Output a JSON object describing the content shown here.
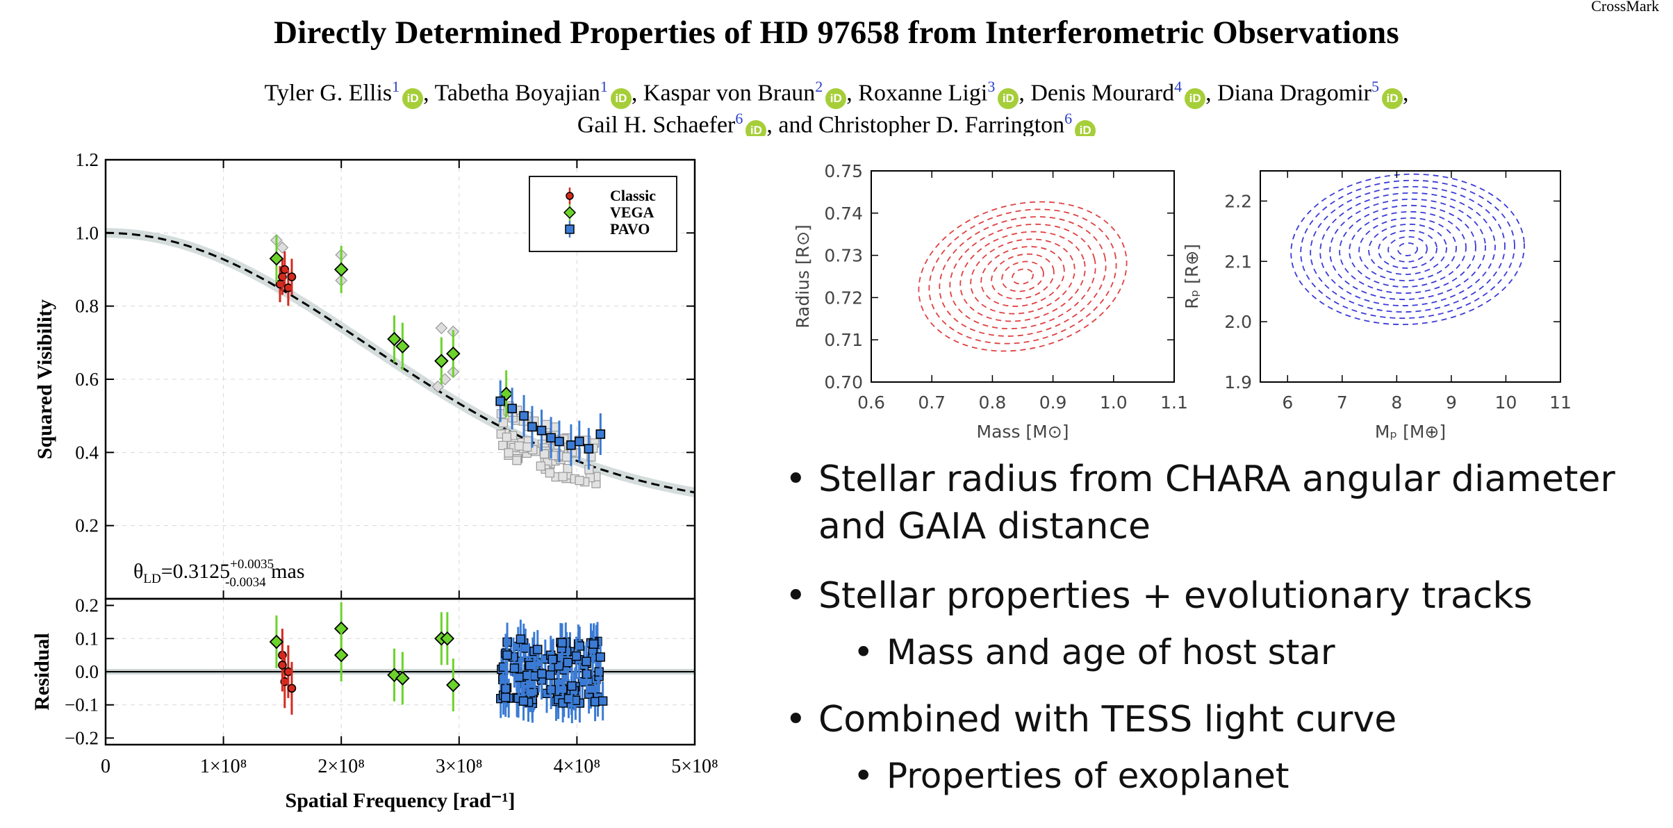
{
  "header": {
    "crossmark": "CrossMark",
    "title": "Directly Determined Properties of HD 97658 from Interferometric Observations",
    "authors_line1": [
      {
        "name": "Tyler G. Ellis",
        "aff": "1",
        "sep": ", "
      },
      {
        "name": "Tabetha Boyajian",
        "aff": "1",
        "sep": ", "
      },
      {
        "name": "Kaspar von Braun",
        "aff": "2",
        "sep": ", "
      },
      {
        "name": "Roxanne Ligi",
        "aff": "3",
        "sep": ", "
      },
      {
        "name": "Denis Mourard",
        "aff": "4",
        "sep": ", "
      },
      {
        "name": "Diana Dragomir",
        "aff": "5",
        "sep": ","
      }
    ],
    "authors_line2": [
      {
        "name": "Gail H. Schaefer",
        "aff": "6",
        "sep": ", and "
      },
      {
        "name": "Christopher D. Farrington",
        "aff": "6",
        "sep": ""
      }
    ],
    "orcid_label": "iD"
  },
  "bullets": {
    "b1_line1": "Stellar radius from CHARA angular diameter",
    "b1_line2": "and GAIA distance",
    "b2": "Stellar properties + evolutionary tracks",
    "b2_sub": "Mass and age of host star",
    "b3": "Combined with TESS light curve",
    "b3_sub": "Properties of exoplanet",
    "bullet_glyph": "•"
  },
  "chart_data": [
    {
      "type": "scatter",
      "title": "",
      "xlabel": "Spatial Frequency [rad⁻¹]",
      "ylabel": "Squared Visibility",
      "xlim": [
        0,
        500000000
      ],
      "ylim": [
        0,
        1.2
      ],
      "xticks": [
        "0",
        "1×10⁸",
        "2×10⁸",
        "3×10⁸",
        "4×10⁸",
        "5×10⁸"
      ],
      "yticks": [
        "0.2",
        "0.4",
        "0.6",
        "0.8",
        "1.0",
        "1.2"
      ],
      "legend": [
        "Classic",
        "VEGA",
        "PAVO"
      ],
      "legend_position": "top-right",
      "annotation": {
        "prefix": "θ",
        "sub": "LD",
        "value": "=0.3125",
        "plus": "+0.0035",
        "minus": "-0.0034",
        "unit": "mas"
      },
      "model": "uniform limb-darkened disk fit, V² = 1.0 at x=0 falling to 0.24 at 5×10⁸",
      "series": [
        {
          "name": "Classic",
          "color": "#d42a1e",
          "marker": "circle",
          "x": [
            148000000.0,
            150000000.0,
            152000000.0,
            155000000.0,
            158000000.0
          ],
          "y": [
            0.86,
            0.88,
            0.9,
            0.85,
            0.88
          ]
        },
        {
          "name": "VEGA",
          "color": "#6bd32a",
          "marker": "diamond",
          "x": [
            145000000.0,
            200000000.0,
            245000000.0,
            252000000.0,
            285000000.0,
            295000000.0,
            340000000.0
          ],
          "y": [
            0.93,
            0.9,
            0.71,
            0.69,
            0.65,
            0.67,
            0.56
          ]
        },
        {
          "name": "PAVO",
          "color": "#3b7bd4",
          "marker": "square",
          "x": [
            335000000.0,
            345000000.0,
            355000000.0,
            362000000.0,
            370000000.0,
            378000000.0,
            385000000.0,
            395000000.0,
            402000000.0,
            410000000.0,
            420000000.0
          ],
          "y": [
            0.54,
            0.52,
            0.5,
            0.47,
            0.46,
            0.44,
            0.43,
            0.42,
            0.43,
            0.41,
            0.45
          ]
        }
      ]
    },
    {
      "type": "scatter",
      "xlabel": "Spatial Frequency [rad⁻¹]",
      "ylabel": "Residual",
      "ylim": [
        -0.22,
        0.22
      ],
      "yticks": [
        "0.2",
        "0.1",
        "0.0",
        "−0.1",
        "−0.2"
      ],
      "series": [
        {
          "name": "Classic",
          "color": "#d42a1e",
          "x": [
            150000000.0,
            152000000.0,
            155000000.0,
            158000000.0,
            150000000.0
          ],
          "y": [
            0.05,
            -0.03,
            0.0,
            -0.05,
            0.02
          ]
        },
        {
          "name": "VEGA",
          "color": "#6bd32a",
          "x": [
            145000000.0,
            200000000.0,
            200000000.0,
            245000000.0,
            252000000.0,
            285000000.0,
            290000000.0,
            295000000.0
          ],
          "y": [
            0.09,
            0.13,
            0.05,
            -0.01,
            -0.02,
            0.1,
            0.1,
            -0.04
          ]
        },
        {
          "name": "PAVO",
          "color": "#3b7bd4",
          "x": [
            335000000.0,
            350000000.0,
            365000000.0,
            380000000.0,
            395000000.0,
            410000000.0,
            420000000.0
          ],
          "y": [
            0.0,
            0.05,
            -0.05,
            0.03,
            -0.02,
            0.04,
            0.01
          ]
        }
      ]
    },
    {
      "type": "contour",
      "xlabel": "Mass [M⊙]",
      "ylabel": "Radius [R⊙]",
      "xlim": [
        0.6,
        1.1
      ],
      "ylim": [
        0.7,
        0.75
      ],
      "xticks": [
        "0.6",
        "0.7",
        "0.8",
        "0.9",
        "1.0",
        "1.1"
      ],
      "yticks": [
        "0.70",
        "0.71",
        "0.72",
        "0.73",
        "0.74",
        "0.75"
      ],
      "center": [
        0.85,
        0.725
      ],
      "levels": 10,
      "color": "#e04040"
    },
    {
      "type": "contour",
      "xlabel": "Mₚ [M⊕]",
      "ylabel": "Rₚ [R⊕]",
      "xlim": [
        5.5,
        11
      ],
      "ylim": [
        1.9,
        2.25
      ],
      "xticks": [
        "6",
        "7",
        "8",
        "9",
        "10",
        "11"
      ],
      "yticks": [
        "1.9",
        "2.0",
        "2.1",
        "2.2"
      ],
      "center": [
        8.2,
        2.12
      ],
      "levels": 12,
      "color": "#3a3ad8"
    }
  ]
}
